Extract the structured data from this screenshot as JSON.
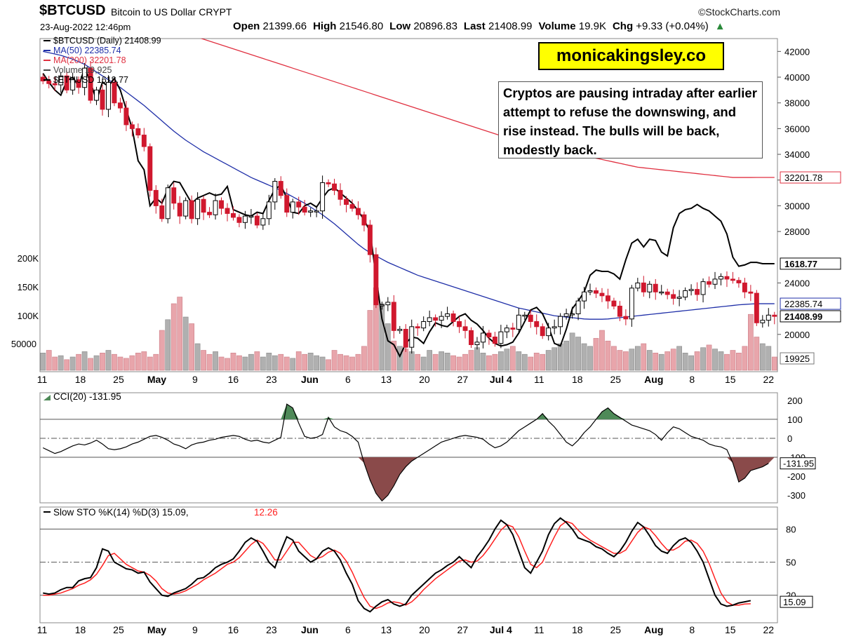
{
  "header": {
    "symbol": "$BTCUSD",
    "name": "Bitcoin to US Dollar CRYPT",
    "source": "©StockCharts.com",
    "date": "23-Aug-2022 12:46pm",
    "ohlc": [
      {
        "label": "Open",
        "value": "21399.66"
      },
      {
        "label": "High",
        "value": "21546.80"
      },
      {
        "label": "Low",
        "value": "20896.83"
      },
      {
        "label": "Last",
        "value": "21408.99"
      },
      {
        "label": "Volume",
        "value": "19.9K"
      },
      {
        "label": "Chg",
        "value": "+9.33 (+0.04%)"
      }
    ],
    "arrow": "▲"
  },
  "brand_label": "monicakingsley.co",
  "annotation": "Cryptos are pausing intraday after earlier attempt to refuse the downswing, and rise instead. The bulls will be back, modestly back.",
  "colors": {
    "up": "#000000",
    "down": "#d0182e",
    "ma50": "#1f2fa8",
    "ma200": "#e03040",
    "eth": "#000000",
    "vol_up": "#b0b0b0",
    "vol_down": "#e8a5ab",
    "cci_pos": "#4e8a58",
    "cci_neg": "#8a4a4a",
    "sto_d": "#ff2020"
  },
  "chart_data": {
    "type": "candlestick",
    "price_axis": {
      "min": 17100,
      "max": 43000,
      "ticks": [
        "42000",
        "40000",
        "38000",
        "36000",
        "34000",
        "32000",
        "30000",
        "28000",
        "24000",
        "20000"
      ]
    },
    "volume_axis": {
      "ticks": [
        "200K",
        "150K",
        "100K",
        "50000"
      ]
    },
    "x_ticks": [
      "11",
      "18",
      "25",
      "May",
      "9",
      "16",
      "23",
      "Jun",
      "6",
      "13",
      "20",
      "27",
      "Jul 4",
      "11",
      "18",
      "25",
      "Aug",
      "8",
      "15",
      "22"
    ],
    "legend": [
      {
        "text": "$BTCUSD (Daily) 21408.99",
        "color": "#000000"
      },
      {
        "text": "MA(50) 22385.74",
        "color": "#1f2fa8"
      },
      {
        "text": "MA(200) 32201.78",
        "color": "#e03040"
      },
      {
        "text": "Volume 19,925",
        "color": "#444444"
      },
      {
        "text": "$ETHUSD 1618.77",
        "color": "#000000"
      }
    ],
    "value_tags": {
      "ma200": "32201.78",
      "eth": "1618.77",
      "ma50": "22385.74",
      "last": "21408.99",
      "volume": "19925"
    },
    "close": [
      39700,
      39500,
      39400,
      40100,
      39000,
      39800,
      39200,
      40700,
      38200,
      39000,
      37500,
      39600,
      38000,
      37600,
      36300,
      36000,
      35500,
      34600,
      31200,
      30000,
      29000,
      31400,
      30200,
      29200,
      30400,
      29000,
      30500,
      29500,
      29300,
      30400,
      29800,
      29400,
      29100,
      28700,
      29200,
      29200,
      28500,
      29000,
      30300,
      31900,
      30800,
      29500,
      30300,
      29900,
      29500,
      29600,
      29600,
      31800,
      31700,
      31200,
      30500,
      30100,
      29800,
      29300,
      28500,
      26200,
      22300,
      22300,
      22500,
      20300,
      20400,
      19000,
      20600,
      20500,
      21000,
      21300,
      21100,
      21400,
      21600,
      21000,
      20600,
      20300,
      19200,
      19400,
      20100,
      19800,
      19300,
      20200,
      20500,
      20400,
      21500,
      21500,
      21000,
      20600,
      19900,
      20500,
      20600,
      21400,
      21600,
      21600,
      22600,
      23300,
      23400,
      23200,
      23000,
      22600,
      22200,
      21400,
      21200,
      23600,
      24000,
      23300,
      23900,
      23300,
      23300,
      23100,
      22800,
      22900,
      23400,
      23500,
      23100,
      24100,
      23900,
      24300,
      24500,
      24300,
      24200,
      24000,
      23300,
      23200,
      20900,
      21100,
      21500,
      21400
    ],
    "ma50": [
      42000,
      41900,
      41800,
      41700,
      41550,
      41400,
      41200,
      41000,
      40700,
      40400,
      40100,
      39800,
      39500,
      39200,
      38850,
      38500,
      38150,
      37800,
      37400,
      37000,
      36600,
      36200,
      35800,
      35450,
      35100,
      34800,
      34500,
      34200,
      33950,
      33700,
      33450,
      33200,
      32950,
      32700,
      32450,
      32200,
      32000,
      31800,
      31600,
      31400,
      31200,
      30950,
      30700,
      30450,
      30200,
      29900,
      29600,
      29300,
      28950,
      28600,
      28200,
      27800,
      27400,
      27000,
      26650,
      26350,
      26100,
      25850,
      25600,
      25400,
      25200,
      25000,
      24800,
      24600,
      24450,
      24300,
      24150,
      24000,
      23850,
      23700,
      23550,
      23400,
      23250,
      23100,
      22950,
      22800,
      22650,
      22500,
      22350,
      22200,
      22050,
      21950,
      21850,
      21750,
      21650,
      21550,
      21450,
      21400,
      21350,
      21300,
      21250,
      21200,
      21180,
      21180,
      21180,
      21200,
      21250,
      21300,
      21350,
      21400,
      21450,
      21500,
      21550,
      21600,
      21650,
      21700,
      21750,
      21800,
      21850,
      21900,
      21950,
      22000,
      22050,
      22100,
      22150,
      22200,
      22250,
      22300,
      22330,
      22360,
      22385,
      22385,
      22385,
      22386
    ],
    "ma200": [
      46900,
      46800,
      46700,
      46550,
      46400,
      46250,
      46100,
      45950,
      45800,
      45650,
      45500,
      45350,
      45200,
      45050,
      44900,
      44750,
      44600,
      44450,
      44300,
      44150,
      44000,
      43850,
      43700,
      43550,
      43400,
      43250,
      43100,
      42950,
      42800,
      42650,
      42500,
      42350,
      42200,
      42050,
      41900,
      41750,
      41600,
      41450,
      41300,
      41150,
      41000,
      40850,
      40700,
      40550,
      40400,
      40250,
      40100,
      39950,
      39800,
      39650,
      39500,
      39350,
      39200,
      39050,
      38900,
      38750,
      38600,
      38450,
      38300,
      38150,
      38000,
      37850,
      37700,
      37550,
      37400,
      37250,
      37100,
      36950,
      36800,
      36650,
      36500,
      36350,
      36200,
      36050,
      35900,
      35750,
      35600,
      35450,
      35300,
      35150,
      35000,
      34900,
      34800,
      34700,
      34600,
      34500,
      34400,
      34300,
      34200,
      34100,
      34000,
      33900,
      33800,
      33700,
      33600,
      33500,
      33400,
      33300,
      33200,
      33100,
      33000,
      32950,
      32900,
      32850,
      32800,
      32750,
      32700,
      32650,
      32600,
      32550,
      32500,
      32450,
      32400,
      32350,
      32300,
      32250,
      32200,
      32200,
      32200,
      32200,
      32202,
      32202,
      32202,
      32202
    ],
    "eth_overlay": [
      40300,
      39600,
      39000,
      38600,
      39700,
      40000,
      39300,
      40700,
      39600,
      38200,
      39600,
      39300,
      39900,
      39000,
      37500,
      36000,
      33500,
      32800,
      30000,
      30600,
      30200,
      31300,
      31900,
      31800,
      31000,
      30200,
      30600,
      30800,
      31000,
      30800,
      30900,
      31500,
      29700,
      29500,
      29300,
      29200,
      29500,
      29400,
      30400,
      31300,
      31600,
      30600,
      29500,
      29400,
      30000,
      30200,
      29900,
      30600,
      31200,
      31400,
      31000,
      30600,
      30200,
      29600,
      28900,
      28000,
      24500,
      21200,
      19500,
      19200,
      18300,
      19300,
      19800,
      19700,
      19300,
      20200,
      20900,
      20700,
      20600,
      21000,
      21400,
      21600,
      21100,
      20800,
      20300,
      19700,
      19300,
      19100,
      19200,
      19400,
      20100,
      21000,
      21900,
      22100,
      21600,
      20600,
      19300,
      19100,
      20400,
      22000,
      22600,
      23300,
      24600,
      25000,
      24900,
      24900,
      24700,
      24300,
      25800,
      27100,
      27400,
      26800,
      27400,
      27300,
      26400,
      26100,
      28300,
      29400,
      29700,
      29800,
      30100,
      29800,
      29600,
      29200,
      28800,
      27800,
      26000,
      25300,
      25400,
      25600,
      25600,
      25500,
      25500,
      25500
    ],
    "volume": [
      13,
      15,
      10,
      11,
      8,
      10,
      12,
      14,
      9,
      11,
      13,
      15,
      12,
      10,
      9,
      11,
      13,
      14,
      10,
      12,
      30,
      38,
      50,
      55,
      40,
      35,
      20,
      15,
      12,
      14,
      10,
      9,
      13,
      11,
      10,
      12,
      14,
      10,
      13,
      11,
      12,
      10,
      9,
      14,
      12,
      13,
      11,
      10,
      8,
      15,
      12,
      11,
      10,
      12,
      18,
      45,
      62,
      50,
      35,
      22,
      18,
      16,
      14,
      12,
      10,
      15,
      12,
      14,
      13,
      11,
      10,
      12,
      15,
      17,
      13,
      11,
      12,
      14,
      16,
      18,
      14,
      12,
      10,
      13,
      12,
      15,
      17,
      20,
      22,
      28,
      25,
      20,
      18,
      24,
      30,
      22,
      18,
      15,
      14,
      16,
      18,
      20,
      15,
      13,
      12,
      14,
      16,
      18,
      13,
      11,
      14,
      17,
      19,
      16,
      14,
      12,
      15,
      13,
      18,
      42,
      25,
      20,
      18,
      10
    ],
    "cci": [
      -50,
      -65,
      -80,
      -70,
      -55,
      -40,
      -30,
      -35,
      -25,
      -10,
      -30,
      -55,
      -60,
      -55,
      -45,
      -30,
      -20,
      -5,
      10,
      15,
      5,
      -10,
      -30,
      -40,
      -55,
      -35,
      -25,
      -20,
      -10,
      -5,
      5,
      10,
      15,
      10,
      -5,
      -15,
      -10,
      -20,
      -25,
      -10,
      5,
      180,
      160,
      80,
      10,
      0,
      5,
      20,
      110,
      60,
      40,
      30,
      10,
      -20,
      -130,
      -220,
      -290,
      -330,
      -300,
      -250,
      -190,
      -150,
      -120,
      -100,
      -80,
      -60,
      -40,
      -20,
      -10,
      0,
      10,
      15,
      10,
      5,
      -5,
      -30,
      -50,
      -40,
      -20,
      10,
      40,
      60,
      80,
      100,
      130,
      90,
      60,
      20,
      -20,
      -40,
      -10,
      30,
      60,
      100,
      140,
      160,
      130,
      110,
      90,
      70,
      60,
      50,
      40,
      20,
      -10,
      30,
      60,
      50,
      30,
      10,
      0,
      -10,
      -30,
      -40,
      -45,
      -60,
      -130,
      -230,
      -210,
      -170,
      -160,
      -150,
      -131.95
    ],
    "stoch_k": [
      22,
      21,
      22,
      25,
      27,
      27,
      33,
      35,
      36,
      45,
      62,
      60,
      50,
      47,
      44,
      43,
      40,
      41,
      32,
      26,
      20,
      19,
      22,
      24,
      26,
      30,
      35,
      36,
      40,
      45,
      48,
      50,
      53,
      60,
      68,
      72,
      69,
      60,
      50,
      45,
      60,
      73,
      70,
      60,
      55,
      50,
      53,
      60,
      63,
      60,
      52,
      40,
      30,
      15,
      8,
      5,
      10,
      14,
      16,
      12,
      10,
      12,
      20,
      25,
      30,
      35,
      40,
      43,
      47,
      50,
      55,
      50,
      45,
      55,
      62,
      70,
      80,
      88,
      84,
      75,
      60,
      45,
      40,
      50,
      60,
      75,
      85,
      90,
      86,
      80,
      72,
      70,
      68,
      64,
      62,
      58,
      55,
      60,
      68,
      78,
      86,
      82,
      74,
      65,
      60,
      58,
      65,
      70,
      72,
      68,
      60,
      50,
      35,
      20,
      12,
      10,
      11,
      13,
      14,
      15.09
    ],
    "stoch_d": [
      20,
      20,
      21,
      22,
      24,
      26,
      29,
      31,
      34,
      39,
      47,
      56,
      58,
      53,
      48,
      45,
      42,
      41,
      38,
      33,
      26,
      22,
      21,
      22,
      24,
      27,
      30,
      34,
      37,
      40,
      44,
      48,
      50,
      54,
      60,
      66,
      70,
      67,
      60,
      52,
      52,
      60,
      68,
      68,
      62,
      56,
      53,
      55,
      59,
      61,
      58,
      51,
      41,
      29,
      18,
      10,
      8,
      10,
      13,
      14,
      13,
      11,
      14,
      19,
      25,
      30,
      35,
      39,
      43,
      47,
      51,
      52,
      50,
      51,
      56,
      63,
      71,
      79,
      84,
      82,
      73,
      60,
      48,
      45,
      50,
      62,
      73,
      83,
      87,
      85,
      79,
      74,
      70,
      67,
      64,
      61,
      58,
      58,
      61,
      69,
      77,
      82,
      80,
      74,
      67,
      61,
      61,
      64,
      69,
      70,
      67,
      60,
      49,
      35,
      22,
      14,
      11,
      11,
      12,
      12.26
    ],
    "cci_label": "CCI(20) -131.95",
    "cci_ticks": [
      "200",
      "100",
      "0",
      "-100",
      "-200",
      "-300"
    ],
    "cci_last_tag": "-131.95",
    "sto_label_prefix": "Slow STO %K(14) %D(3) 15.09,",
    "sto_label_d": "12.26",
    "sto_ticks": [
      "80",
      "50",
      "20"
    ],
    "sto_last_tag": "15.09"
  }
}
